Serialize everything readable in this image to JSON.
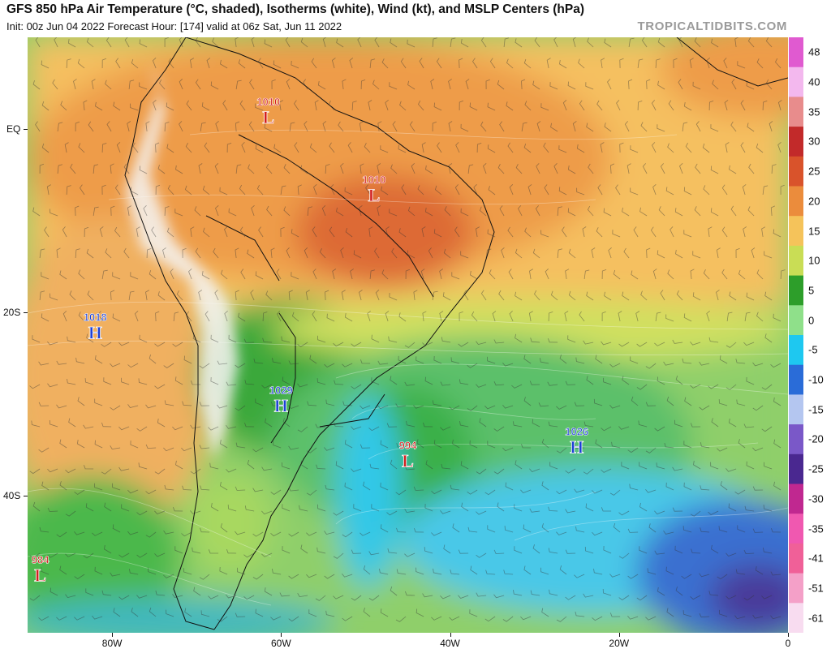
{
  "header": {
    "title": "GFS 850 hPa Air Temperature (°C, shaded), Isotherms (white), Wind (kt), and MSLP Centers (hPa)",
    "subtitle": "Init: 00z Jun 04 2022   Forecast Hour: [174]   valid at 06z Sat, Jun 11 2022",
    "brand": "TROPICALTIDBITS.COM"
  },
  "axes": {
    "lat_labels": [
      {
        "label": "EQ",
        "lat": 0
      },
      {
        "label": "20S",
        "lat": -20
      },
      {
        "label": "40S",
        "lat": -40
      }
    ],
    "lon_labels": [
      {
        "label": "80W",
        "lon": -80
      },
      {
        "label": "60W",
        "lon": -60
      },
      {
        "label": "40W",
        "lon": -40
      },
      {
        "label": "20W",
        "lon": -20
      },
      {
        "label": "0",
        "lon": 0
      }
    ],
    "lon_range": [
      -90,
      0
    ],
    "lat_range": [
      -55,
      10
    ]
  },
  "colorbar": {
    "labels": [
      "48",
      "40",
      "35",
      "30",
      "25",
      "20",
      "15",
      "10",
      "5",
      "0",
      "-5",
      "-10",
      "-15",
      "-20",
      "-25",
      "-30",
      "-35",
      "-41",
      "-51",
      "-61"
    ],
    "stops": [
      {
        "value": "48",
        "color": "#e05ad0"
      },
      {
        "value": "40",
        "color": "#f3b8ee"
      },
      {
        "value": "35",
        "color": "#e88c8c"
      },
      {
        "value": "30",
        "color": "#c22a2a"
      },
      {
        "value": "25",
        "color": "#d9532b"
      },
      {
        "value": "20",
        "color": "#eb8c3c"
      },
      {
        "value": "15",
        "color": "#f5c35a"
      },
      {
        "value": "10",
        "color": "#c9dd55"
      },
      {
        "value": "5",
        "color": "#2d9e2a"
      },
      {
        "value": "0",
        "color": "#8fe08a"
      },
      {
        "value": "-5",
        "color": "#1ec8f0"
      },
      {
        "value": "-10",
        "color": "#2a6cd8"
      },
      {
        "value": "-15",
        "color": "#b4c6f0"
      },
      {
        "value": "-20",
        "color": "#7a58c8"
      },
      {
        "value": "-25",
        "color": "#4a2890"
      },
      {
        "value": "-30",
        "color": "#c02890"
      },
      {
        "value": "-35",
        "color": "#f058b0"
      },
      {
        "value": "-41",
        "color": "#f06098"
      },
      {
        "value": "-51",
        "color": "#f4a0c8"
      },
      {
        "value": "-61",
        "color": "#f8dcf0"
      }
    ]
  },
  "pressure_centers": [
    {
      "type": "L",
      "value": "1010",
      "lon": -61.5,
      "lat": 1.5,
      "color": "#d11f1f"
    },
    {
      "type": "L",
      "value": "1010",
      "lon": -49,
      "lat": -7,
      "color": "#d11f1f"
    },
    {
      "type": "H",
      "value": "1018",
      "lon": -82,
      "lat": -22,
      "color": "#1b3fd6"
    },
    {
      "type": "H",
      "value": "1029",
      "lon": -60,
      "lat": -30,
      "color": "#1b3fd6"
    },
    {
      "type": "L",
      "value": "994",
      "lon": -45,
      "lat": -36,
      "color": "#d11f1f"
    },
    {
      "type": "H",
      "value": "1026",
      "lon": -25,
      "lat": -34.5,
      "color": "#1b3fd6"
    },
    {
      "type": "L",
      "value": "984",
      "lon": -88.5,
      "lat": -48.5,
      "color": "#d11f1f"
    }
  ]
}
